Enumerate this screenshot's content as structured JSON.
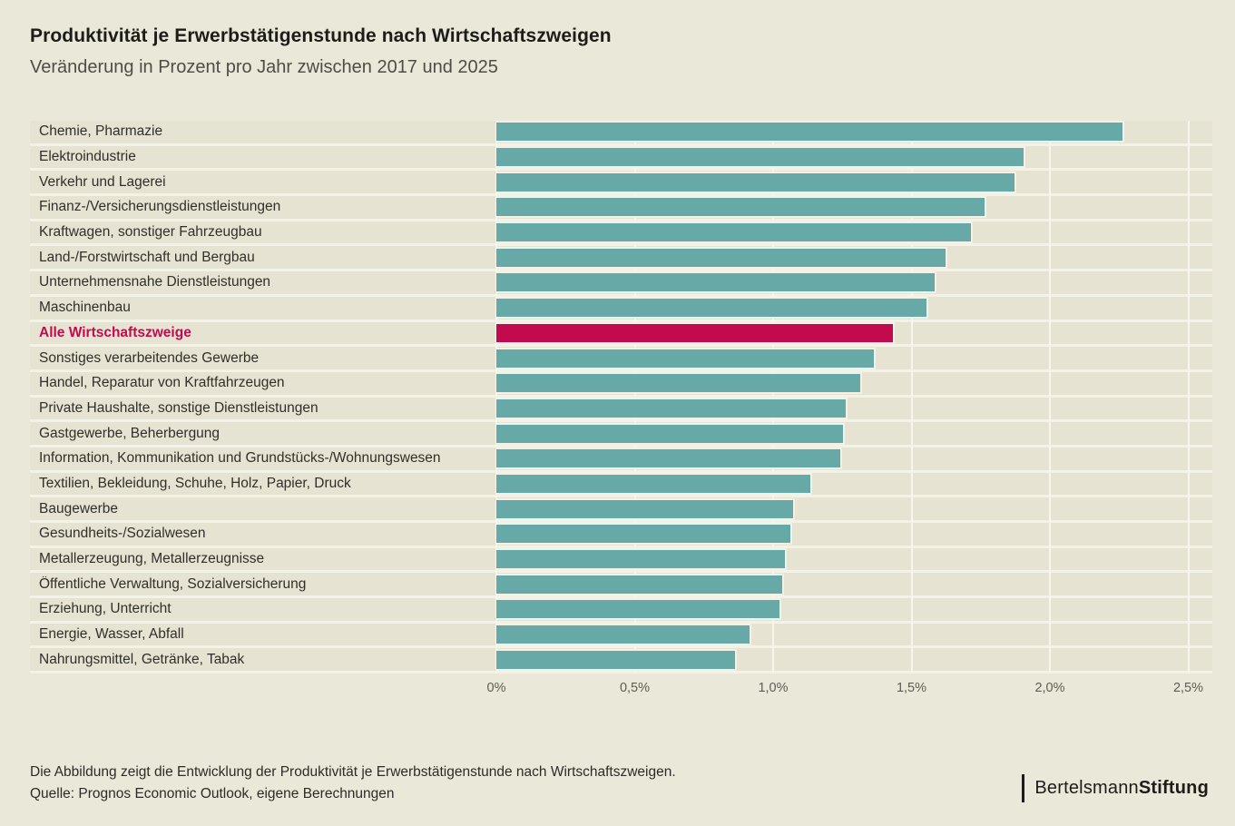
{
  "header": {
    "title": "Produktivität je Erwerbstätigenstunde nach Wirtschaftszweigen",
    "subtitle": "Veränderung in Prozent pro Jahr zwischen 2017 und 2025"
  },
  "chart_data": {
    "type": "bar",
    "orientation": "horizontal",
    "title": "Produktivität je Erwerbstätigenstunde nach Wirtschaftszweigen",
    "subtitle": "Veränderung in Prozent pro Jahr zwischen 2017 und 2025",
    "unit": "Prozent pro Jahr",
    "categories": [
      "Chemie, Pharmazie",
      "Elektroindustrie",
      "Verkehr und Lagerei",
      "Finanz-/Versicherungsdienstleistungen",
      "Kraftwagen, sonstiger Fahrzeugbau",
      "Land-/Forstwirtschaft und Bergbau",
      "Unternehmensnahe Dienstleistungen",
      "Maschinenbau",
      "Alle Wirtschaftszweige",
      "Sonstiges verarbeitendes Gewerbe",
      "Handel, Reparatur von Kraftfahrzeugen",
      "Private Haushalte, sonstige Dienstleistungen",
      "Gastgewerbe, Beherbergung",
      "Information, Kommunikation und Grundstücks-/Wohnungswesen",
      "Textilien, Bekleidung, Schuhe, Holz, Papier, Druck",
      "Baugewerbe",
      "Gesundheits-/Sozialwesen",
      "Metallerzeugung, Metallerzeugnisse",
      "Öffentliche Verwaltung, Sozialversicherung",
      "Erziehung, Unterricht",
      "Energie, Wasser, Abfall",
      "Nahrungsmittel, Getränke, Tabak"
    ],
    "values": [
      2.27,
      1.91,
      1.88,
      1.77,
      1.72,
      1.63,
      1.59,
      1.56,
      1.44,
      1.37,
      1.32,
      1.27,
      1.26,
      1.25,
      1.14,
      1.08,
      1.07,
      1.05,
      1.04,
      1.03,
      0.92,
      0.87
    ],
    "highlight_index": 8,
    "highlight_category": "Alle Wirtschaftszweige",
    "xlim": [
      0,
      2.5
    ],
    "x_tick_values": [
      0,
      0.5,
      1.0,
      1.5,
      2.0,
      2.5
    ],
    "x_tick_labels": [
      "0%",
      "0,5%",
      "1,0%",
      "1,5%",
      "2,0%",
      "2,5%"
    ],
    "grid": true,
    "legend": false,
    "colors": {
      "bar": "#67a9a6",
      "highlight_bar": "#c20b4e",
      "row_band": "#e6e3d2",
      "background": "#eae8d9",
      "gridline": "#f7f6ec"
    }
  },
  "footer": {
    "note": "Die Abbildung zeigt die Entwicklung der Produktivität je Erwerbstätigenstunde nach Wirtschaftszweigen.",
    "source": "Quelle: Prognos Economic Outlook, eigene Berechnungen",
    "logo": {
      "brand_regular": "Bertelsmann",
      "brand_bold": "Stiftung"
    }
  }
}
